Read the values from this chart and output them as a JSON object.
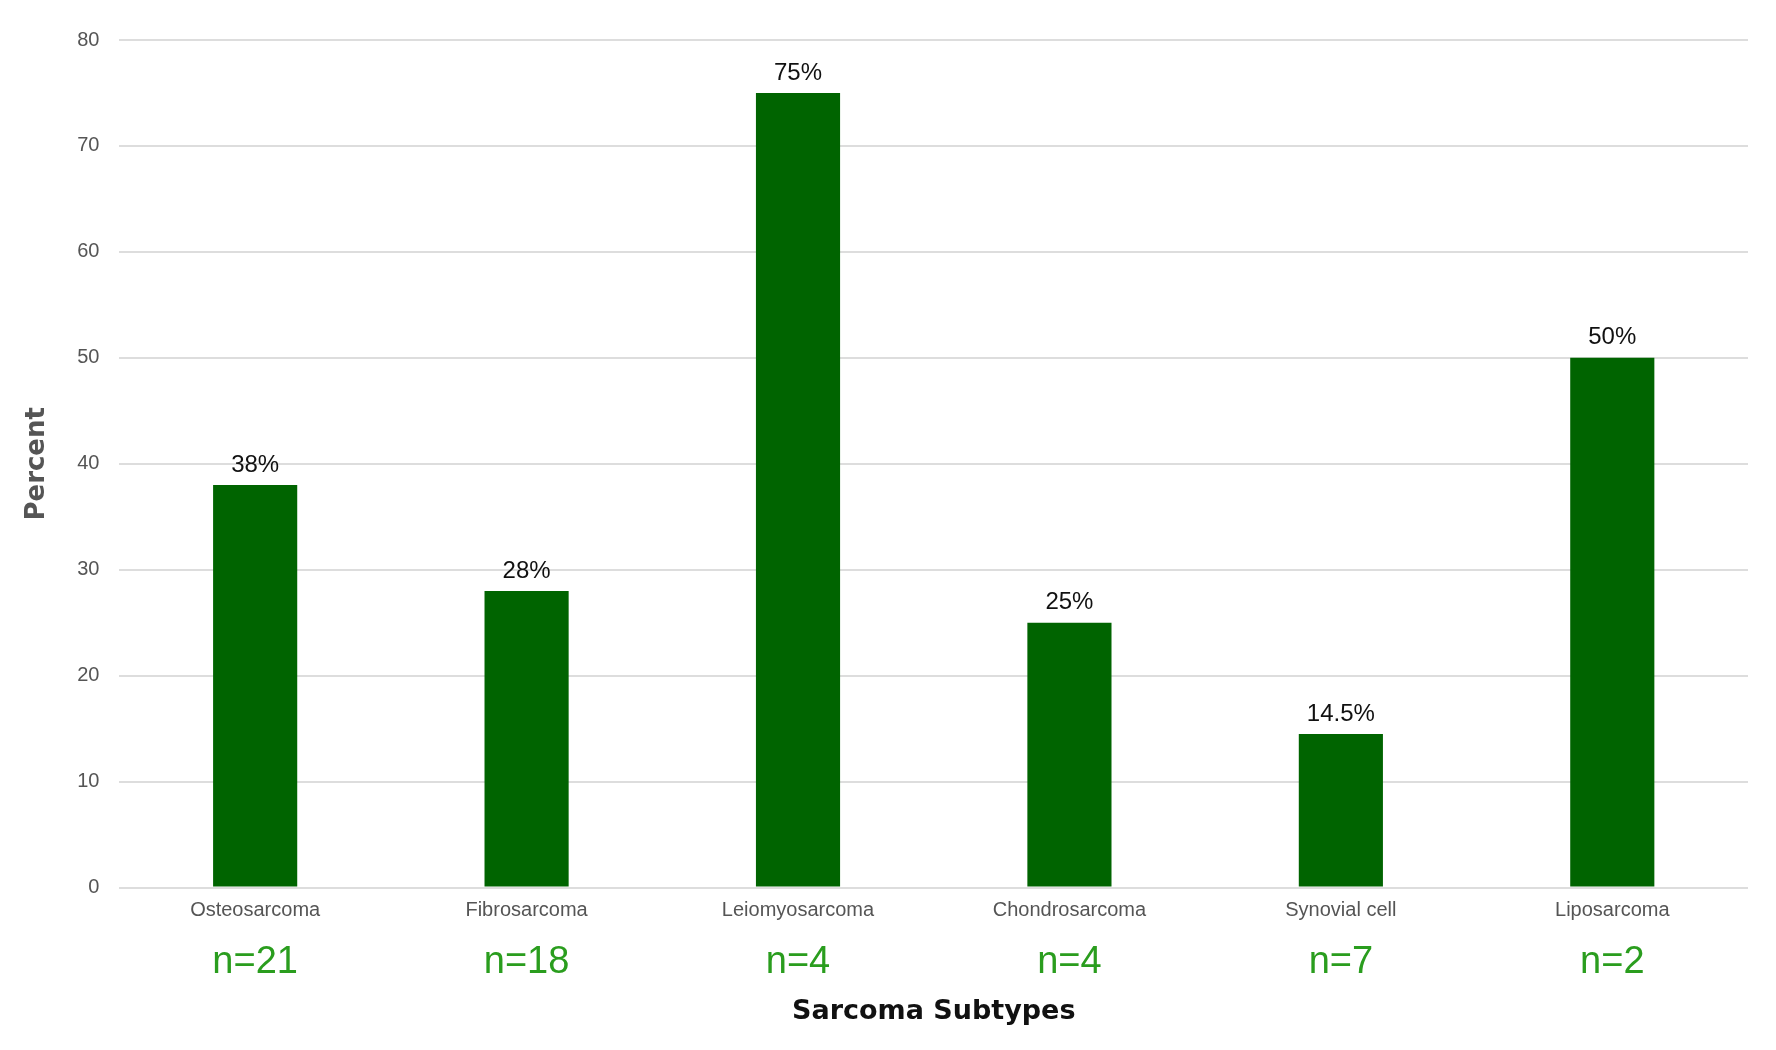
{
  "chart_data": {
    "type": "bar",
    "xlabel": "Sarcoma Subtypes",
    "ylabel": "Percent",
    "categories": [
      "Osteosarcoma",
      "Fibrosarcoma",
      "Leiomyosarcoma",
      "Chondrosarcoma",
      "Synovial cell",
      "Liposarcoma"
    ],
    "values": [
      38,
      28,
      75,
      25,
      14.5,
      50
    ],
    "value_labels": [
      "38%",
      "28%",
      "75%",
      "25%",
      "14.5%",
      "50%"
    ],
    "color": "#006400",
    "ylim": [
      0,
      80
    ],
    "yticks": [
      0,
      10,
      20,
      30,
      40,
      50,
      60,
      70,
      80
    ],
    "grid": "y",
    "legend": false,
    "annotations": [
      "n=21",
      "n=18",
      "n=4",
      "n=4",
      "n=7",
      "n=2"
    ]
  }
}
